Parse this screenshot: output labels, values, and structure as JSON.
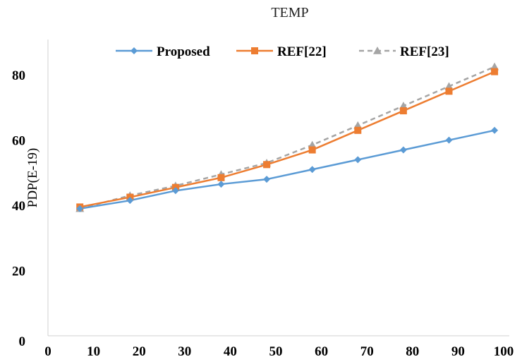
{
  "chart_data": {
    "type": "line",
    "title": "TEMP",
    "xlabel": "",
    "ylabel": "PDP(E-19)",
    "x": [
      7,
      18,
      28,
      38,
      48,
      58,
      68,
      78,
      88,
      98
    ],
    "x_ticks": [
      "0",
      "10",
      "20",
      "30",
      "40",
      "50",
      "60",
      "70",
      "80",
      "90",
      "100"
    ],
    "y_ticks": [
      "0",
      "20",
      "40",
      "60",
      "80"
    ],
    "xlim": [
      0,
      100
    ],
    "ylim": [
      0,
      90
    ],
    "grid": false,
    "legend_position": "top",
    "series": [
      {
        "name": "Proposed",
        "color": "#5B9BD5",
        "marker": "diamond",
        "line_style": "solid",
        "values": [
          39,
          41.5,
          44.5,
          46.5,
          48,
          51,
          54,
          57,
          60,
          63
        ]
      },
      {
        "name": "REF[22]",
        "color": "#ED7D31",
        "marker": "square",
        "line_style": "solid",
        "values": [
          39.5,
          42.5,
          45.5,
          48.5,
          52.5,
          57,
          63,
          69,
          75,
          81
        ]
      },
      {
        "name": "REF[23]",
        "color": "#A5A5A5",
        "marker": "triangle",
        "line_style": "dashed",
        "values": [
          39,
          43,
          46,
          49.5,
          53,
          58.5,
          64.5,
          70.5,
          76.5,
          82.5
        ]
      }
    ]
  }
}
